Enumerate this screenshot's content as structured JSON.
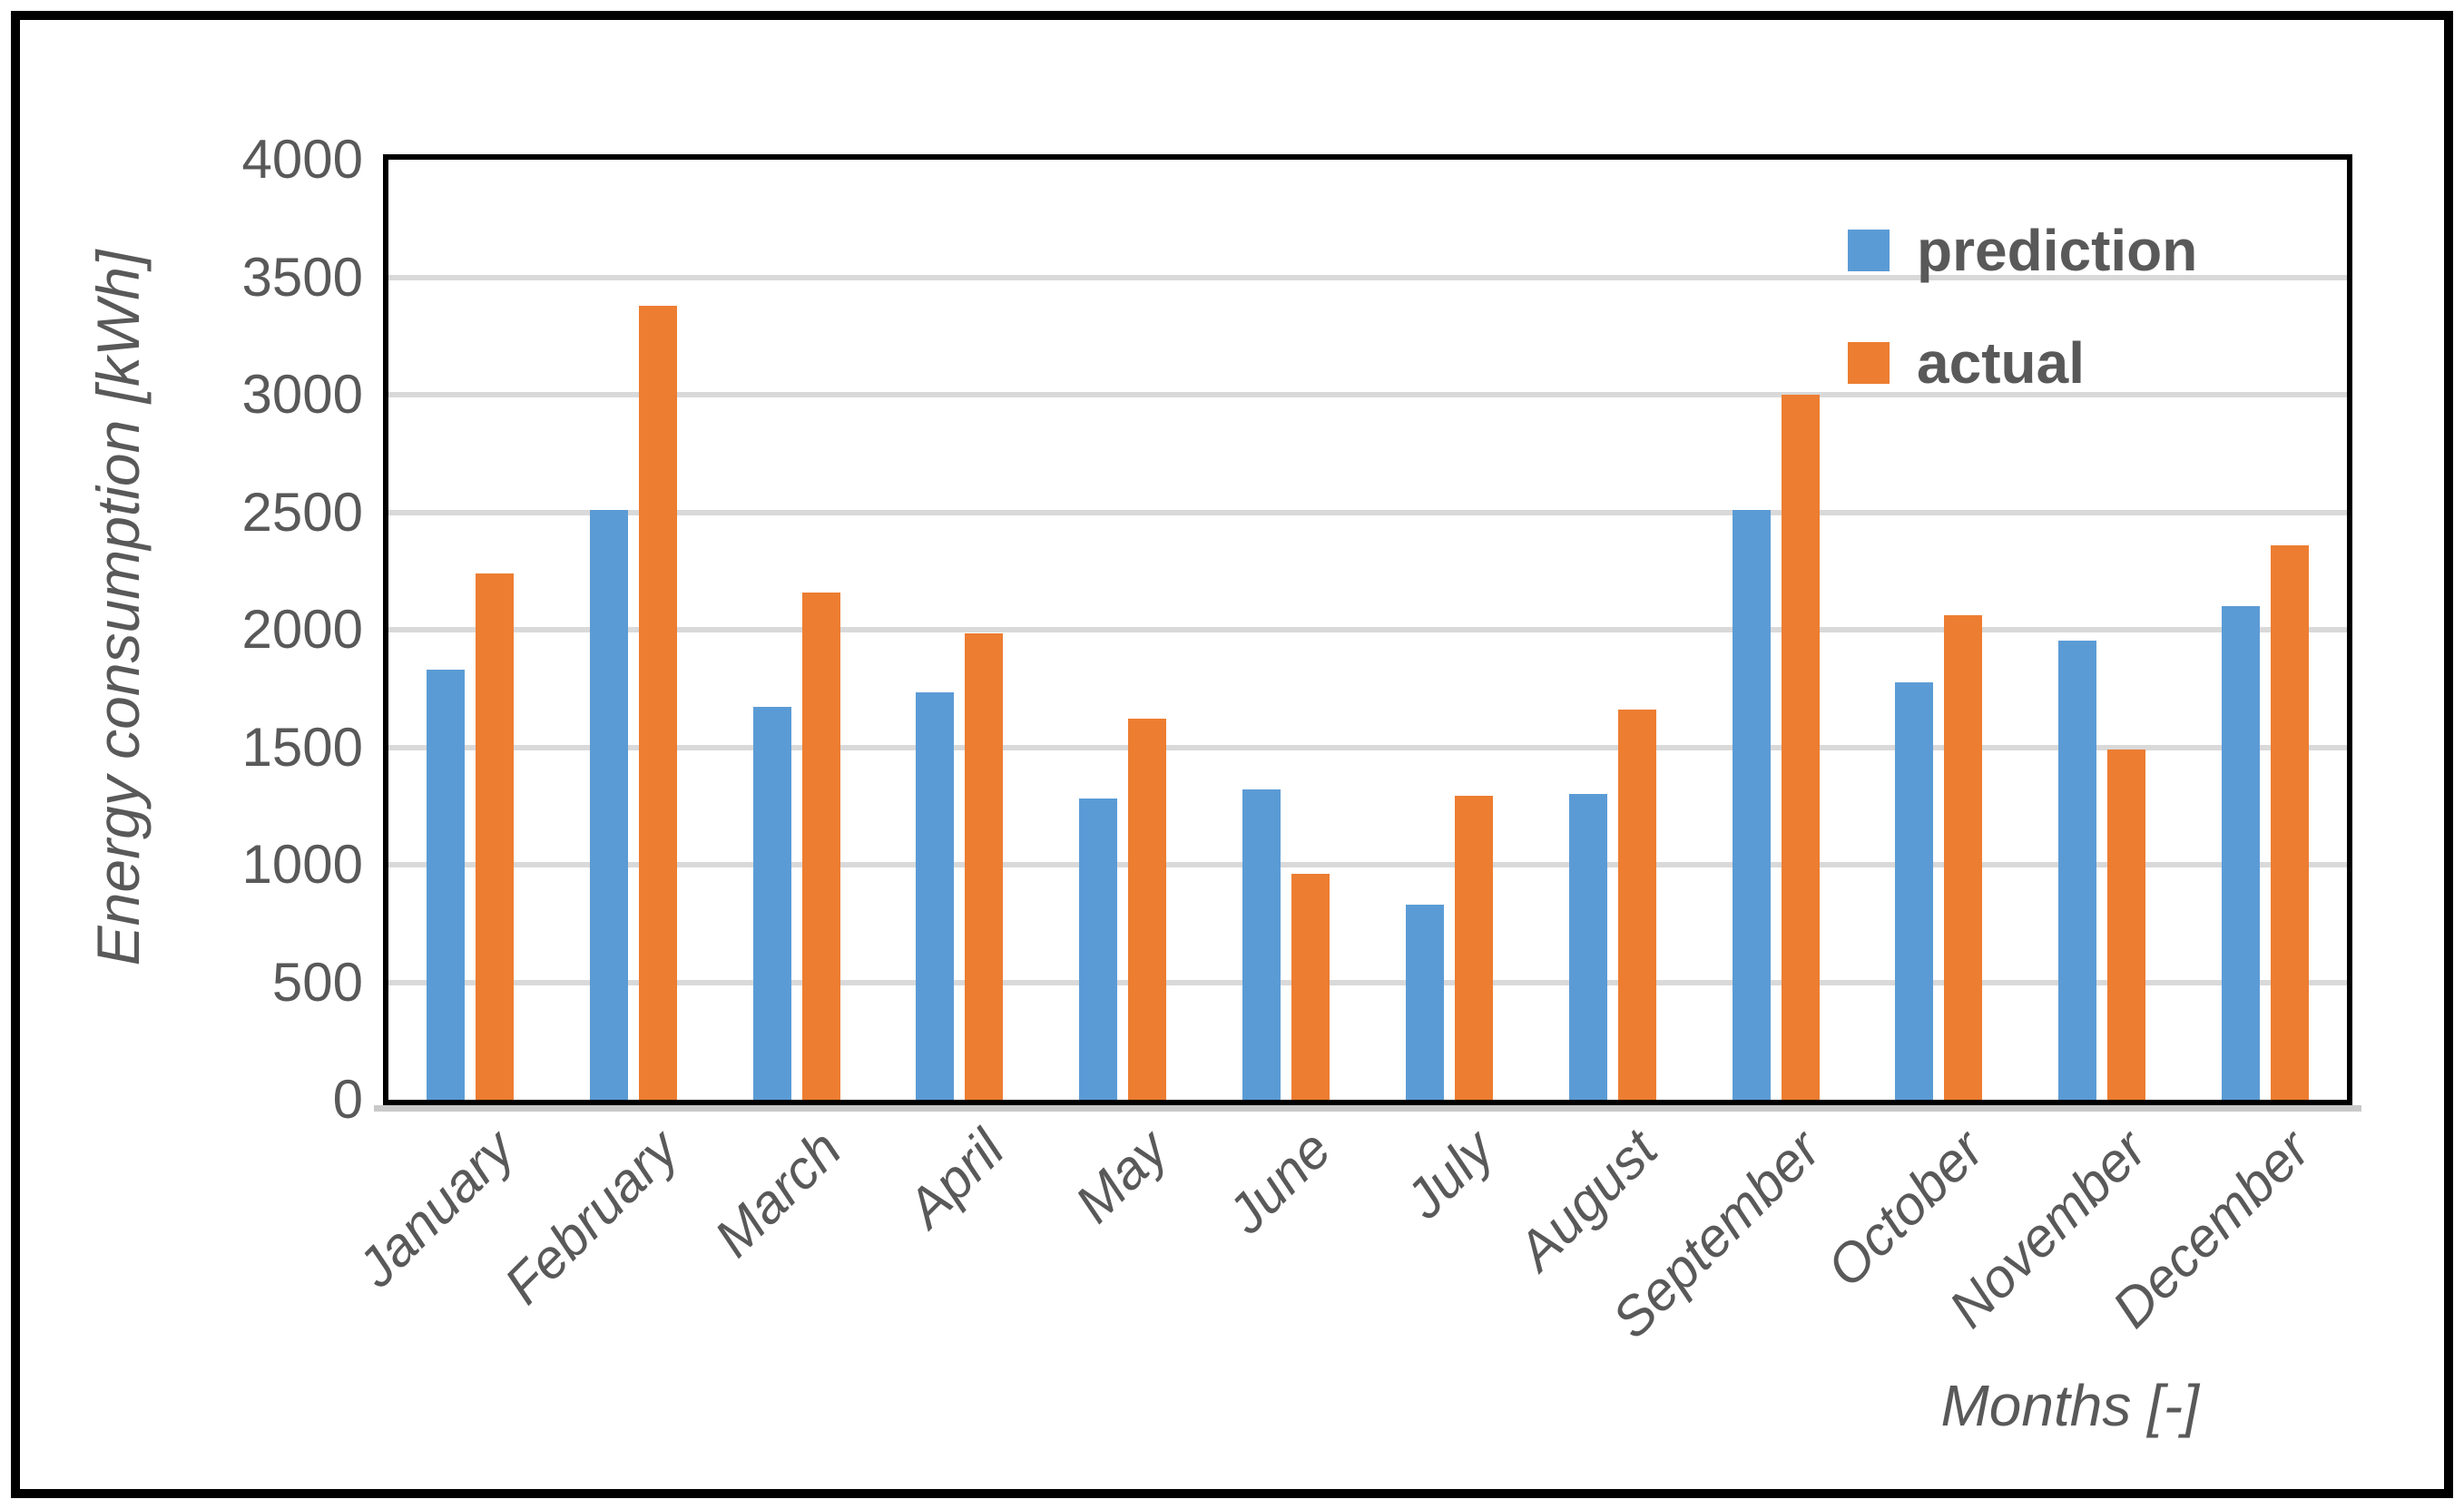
{
  "colors": {
    "prediction": "#5B9BD5",
    "actual": "#ED7D31",
    "text": "#595959",
    "gridline": "#D9D9D9",
    "plot_border": "#000000",
    "axis_line": "#C9C9C9",
    "background": "#FFFFFF"
  },
  "chart_data": {
    "type": "bar",
    "title": "",
    "categories": [
      "January",
      "February",
      "March",
      "April",
      "May",
      "June",
      "July",
      "August",
      "September",
      "October",
      "November",
      "December"
    ],
    "series": [
      {
        "name": "prediction",
        "color": "#5B9BD5",
        "values": [
          1830,
          2510,
          1670,
          1735,
          1280,
          1320,
          830,
          1300,
          2510,
          1775,
          1955,
          2100
        ]
      },
      {
        "name": "actual",
        "color": "#ED7D31",
        "values": [
          2240,
          3380,
          2160,
          1985,
          1620,
          960,
          1295,
          1660,
          3000,
          2060,
          1490,
          2360
        ]
      }
    ],
    "xlabel": "Months [-]",
    "ylabel": "Energy consumption [kWh]",
    "ylim": [
      0,
      4000
    ],
    "ytick_step": 500,
    "y_tick_labels": [
      "0",
      "500",
      "1000",
      "1500",
      "2000",
      "2500",
      "3000",
      "3500",
      "4000"
    ],
    "grid": true,
    "legend_position": "top-right-inside"
  }
}
